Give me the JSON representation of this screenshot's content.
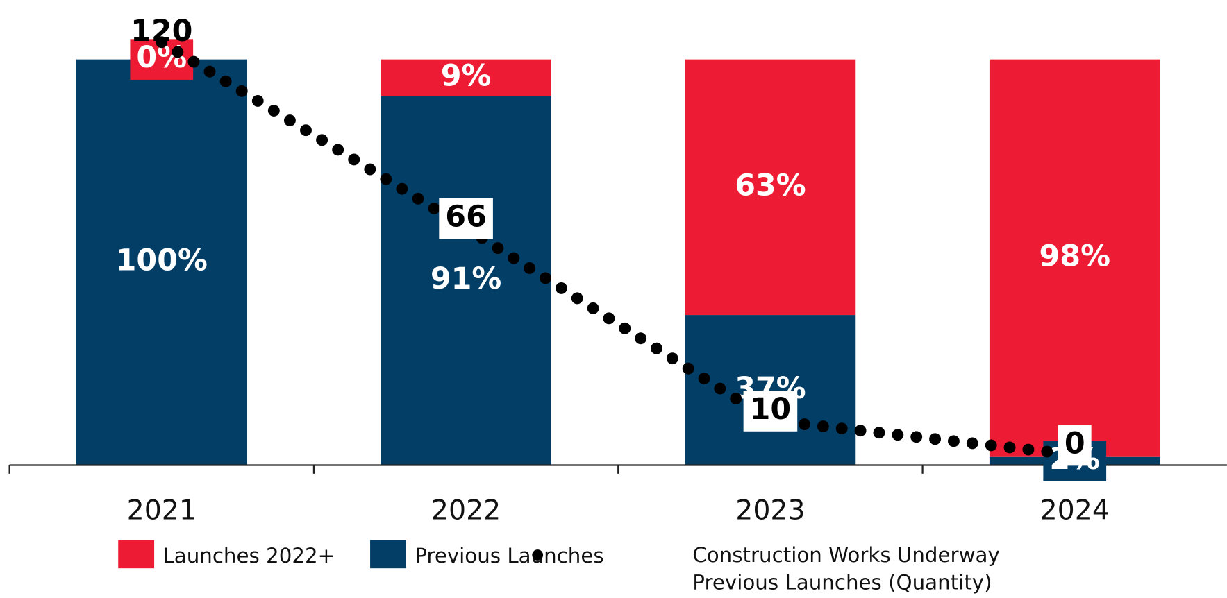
{
  "chart_data": {
    "type": "bar",
    "stacked": true,
    "categories": [
      "2021",
      "2022",
      "2023",
      "2024"
    ],
    "ylim": [
      0,
      100
    ],
    "y2lim": [
      -3,
      115
    ],
    "series": [
      {
        "name": "Launches 2022+",
        "color": "#ed1c34",
        "values": [
          0,
          9,
          63,
          98
        ],
        "value_labels": [
          "0%",
          "9%",
          "63%",
          "98%"
        ]
      },
      {
        "name": "Previous Launches",
        "color": "#023e66",
        "values": [
          100,
          91,
          37,
          2
        ],
        "value_labels": [
          "100%",
          "91%",
          "37%",
          "2%"
        ]
      },
      {
        "name": "Construction Works Underway Previous Launches (Quantity)",
        "type": "line",
        "style": "dotted",
        "axis": "y2",
        "color": "#000000",
        "values": [
          120,
          66,
          10,
          0
        ]
      }
    ]
  }
}
